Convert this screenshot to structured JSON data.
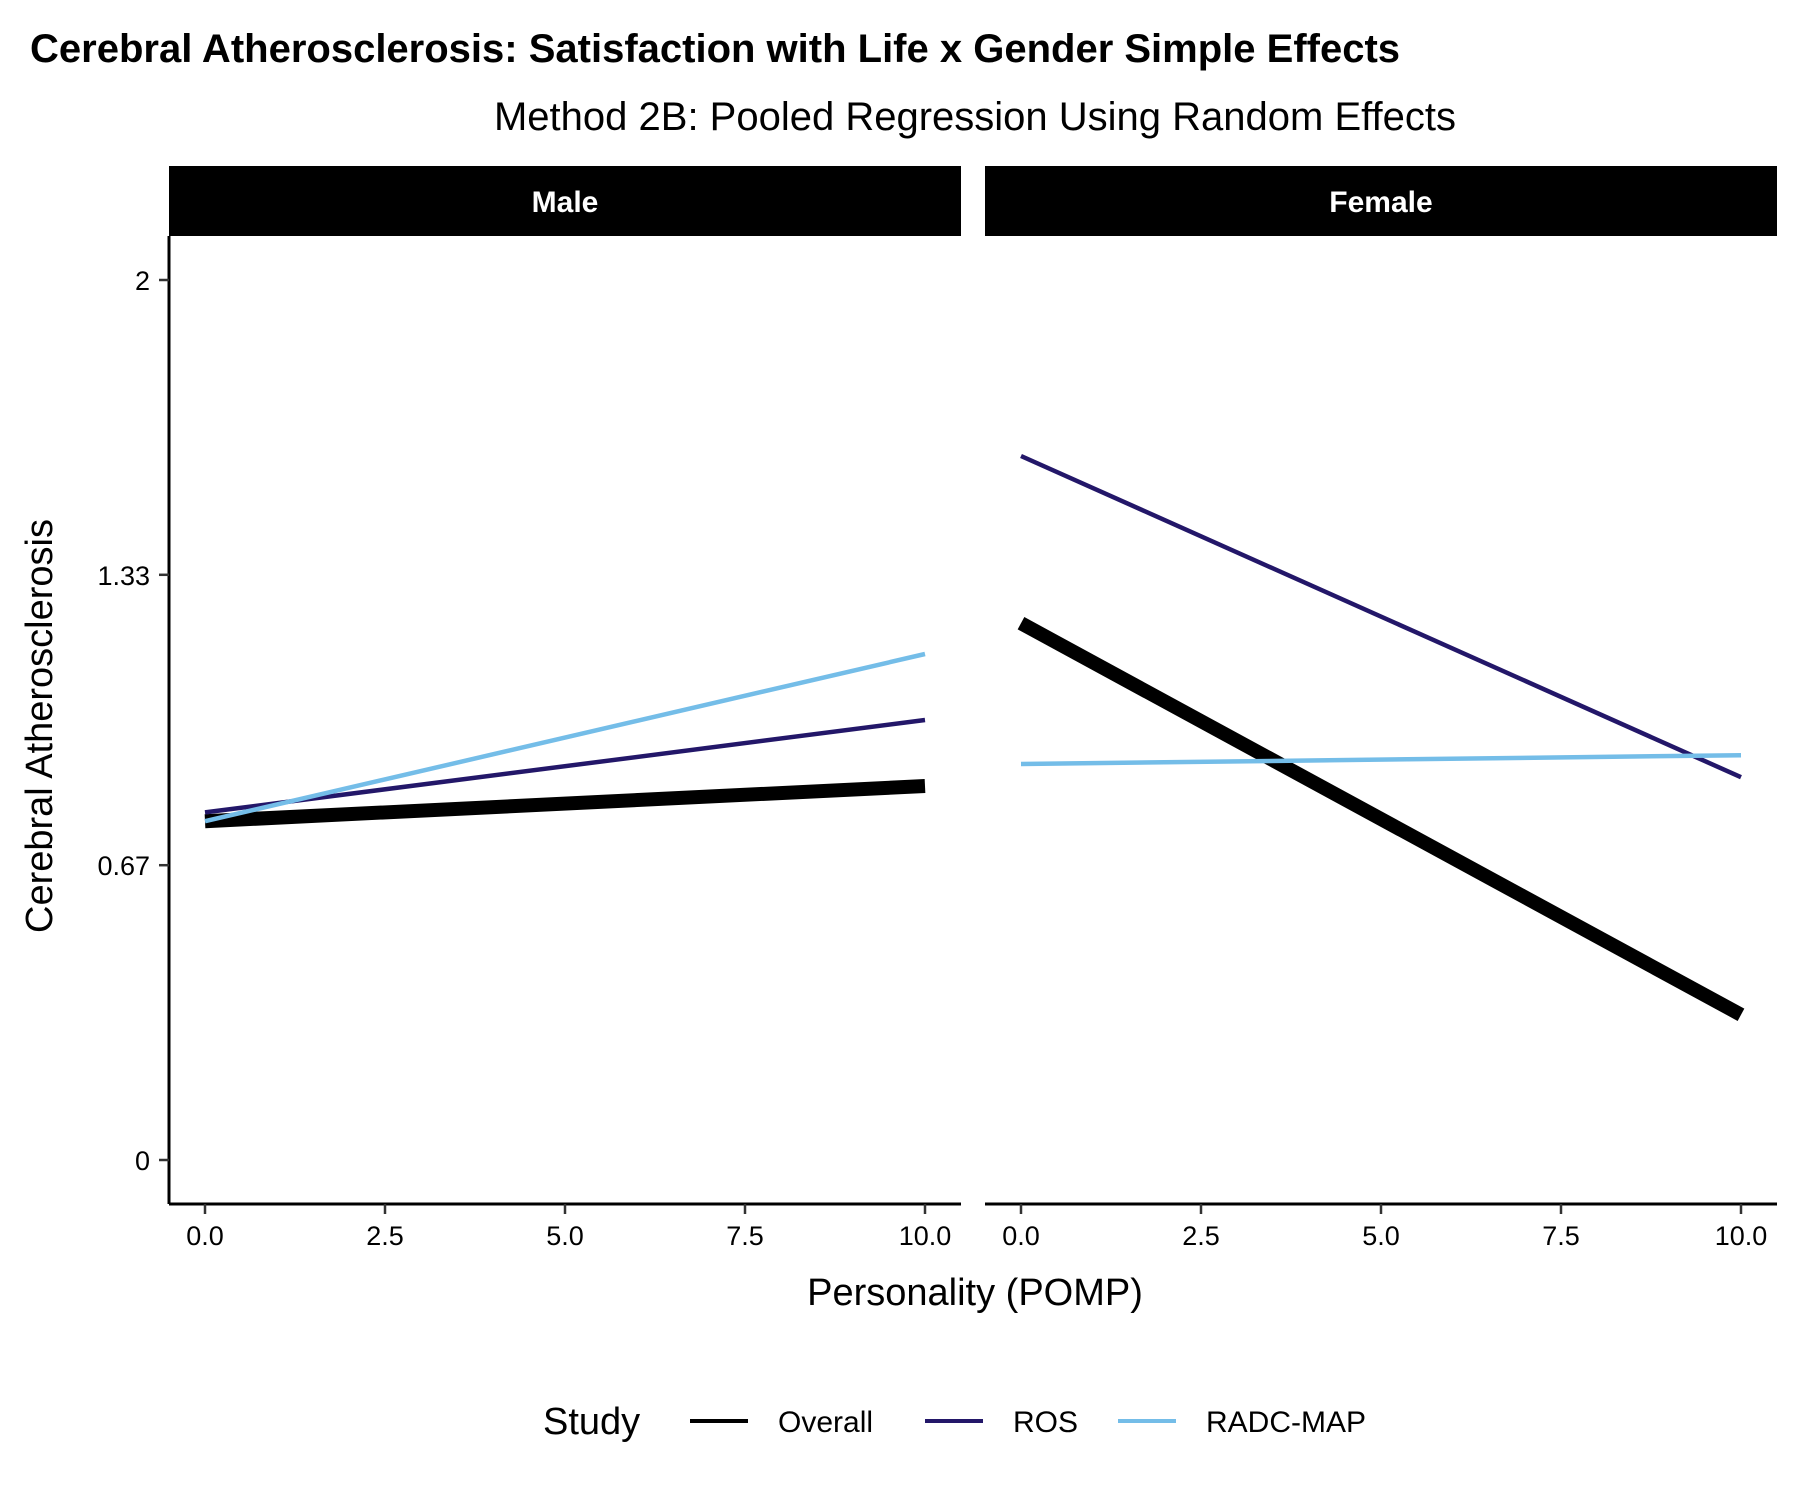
{
  "chart_data": {
    "type": "line",
    "title": "Cerebral Atherosclerosis: Satisfaction with Life x Gender Simple Effects",
    "subtitle": "Method 2B: Pooled Regression Using Random Effects",
    "xlabel": "Personality (POMP)",
    "ylabel": "Cerebral Atherosclerosis",
    "xlim": [
      -0.5,
      10.5
    ],
    "ylim": [
      -0.1,
      2.1
    ],
    "x_ticks": [
      0,
      2.5,
      5,
      7.5,
      10
    ],
    "x_tick_labels": [
      "0.0",
      "2.5",
      "5.0",
      "7.5",
      "10.0"
    ],
    "y_ticks": [
      0,
      0.67,
      1.33,
      2
    ],
    "y_tick_labels": [
      "0",
      "0.67",
      "1.33",
      "2"
    ],
    "grid": false,
    "legend": {
      "title": "Study",
      "position": "bottom",
      "entries": [
        "Overall",
        "ROS",
        "RADC-MAP"
      ]
    },
    "series_styles": [
      {
        "name": "Overall",
        "color": "#000000",
        "width": "thick"
      },
      {
        "name": "ROS",
        "color": "#231769",
        "width": "normal"
      },
      {
        "name": "RADC-MAP",
        "color": "#74BDE8",
        "width": "normal"
      }
    ],
    "panels": [
      {
        "label": "Male",
        "series": [
          {
            "name": "Overall",
            "x": [
              0,
              10
            ],
            "y": [
              0.77,
              0.85
            ]
          },
          {
            "name": "ROS",
            "x": [
              0,
              10
            ],
            "y": [
              0.79,
              1.0
            ]
          },
          {
            "name": "RADC-MAP",
            "x": [
              0,
              10
            ],
            "y": [
              0.77,
              1.15
            ]
          }
        ]
      },
      {
        "label": "Female",
        "series": [
          {
            "name": "Overall",
            "x": [
              0,
              10
            ],
            "y": [
              1.22,
              0.33
            ]
          },
          {
            "name": "ROS",
            "x": [
              0,
              10
            ],
            "y": [
              1.6,
              0.87
            ]
          },
          {
            "name": "RADC-MAP",
            "x": [
              0,
              10
            ],
            "y": [
              0.9,
              0.92
            ]
          }
        ]
      }
    ]
  }
}
